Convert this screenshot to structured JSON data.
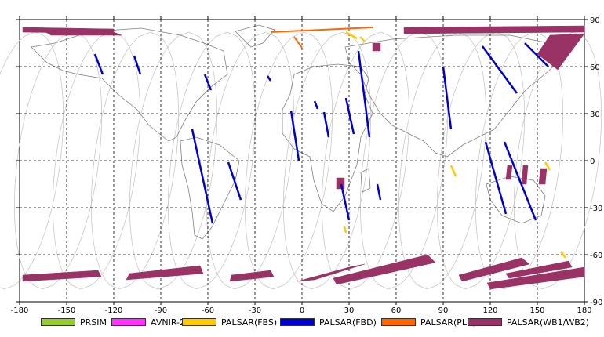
{
  "chart_data": {
    "type": "map",
    "xlim": [
      -180,
      180
    ],
    "ylim": [
      -90,
      90
    ],
    "x_ticks": [
      "-180",
      "-150",
      "-120",
      "-90",
      "-60",
      "-30",
      "0",
      "30",
      "60",
      "90",
      "120",
      "150",
      "180"
    ],
    "y_ticks": [
      "90",
      "60",
      "30",
      "0",
      "-30",
      "-60",
      "-90"
    ],
    "grid": "dashed",
    "legend_placement": "bottom",
    "legend": [
      {
        "label": "PRSIM",
        "color": "#99cc33"
      },
      {
        "label": "AVNIR-2",
        "color": "#ff33ff"
      },
      {
        "label": "PALSAR(FBS)",
        "color": "#ffcc00"
      },
      {
        "label": "PALSAR(FBD)",
        "color": "#0000cc"
      },
      {
        "label": "PALSAR(PLR)",
        "color": "#ff6600"
      },
      {
        "label": "PALSAR(WB1/WB2)",
        "color": "#993366"
      }
    ],
    "colors": {
      "FBD": "#0000cc",
      "FBS": "#ffcc00",
      "PLR": "#ff6600",
      "WB": "#993366",
      "orbit": "#c8c8c8",
      "coast": "#808080"
    },
    "fbd_strips": [
      [
        [
          -132,
          68
        ],
        [
          -127,
          55
        ]
      ],
      [
        [
          -107,
          67
        ],
        [
          -103,
          55
        ]
      ],
      [
        [
          -70,
          20
        ],
        [
          -57,
          -40
        ]
      ],
      [
        [
          -47,
          -1
        ],
        [
          -39,
          -25
        ]
      ],
      [
        [
          -62,
          55
        ],
        [
          -58,
          45
        ]
      ],
      [
        [
          -22,
          54
        ],
        [
          -20,
          51
        ]
      ],
      [
        [
          -7,
          32
        ],
        [
          -2,
          0
        ]
      ],
      [
        [
          8,
          38
        ],
        [
          10,
          33
        ]
      ],
      [
        [
          14,
          31
        ],
        [
          17,
          15
        ]
      ],
      [
        [
          28,
          40
        ],
        [
          33,
          17
        ]
      ],
      [
        [
          36,
          70
        ],
        [
          43,
          15
        ]
      ],
      [
        [
          25,
          -15
        ],
        [
          30,
          -38
        ]
      ],
      [
        [
          48,
          -15
        ],
        [
          50,
          -25
        ]
      ],
      [
        [
          90,
          60
        ],
        [
          95,
          20
        ]
      ],
      [
        [
          117,
          12
        ],
        [
          130,
          -34
        ]
      ],
      [
        [
          129,
          12
        ],
        [
          149,
          -38
        ]
      ],
      [
        [
          115,
          73
        ],
        [
          137,
          43
        ]
      ],
      [
        [
          142,
          75
        ],
        [
          157,
          60
        ]
      ]
    ],
    "fbs_strips": [
      [
        [
          28,
          82
        ],
        [
          35,
          78
        ]
      ],
      [
        [
          37,
          79
        ],
        [
          40,
          76
        ]
      ],
      [
        [
          27,
          -42
        ],
        [
          28,
          -46
        ]
      ],
      [
        [
          165,
          -58
        ],
        [
          168,
          -62
        ]
      ],
      [
        [
          95,
          -3
        ],
        [
          98,
          -10
        ]
      ],
      [
        [
          155,
          -1
        ],
        [
          158,
          -6
        ]
      ]
    ],
    "plr_strips": [
      [
        [
          -20,
          82
        ],
        [
          45,
          85
        ]
      ],
      [
        [
          -5,
          79
        ],
        [
          0,
          72
        ]
      ]
    ],
    "wb_swaths": [
      [
        [
          -178,
          85
        ],
        [
          -120,
          84
        ],
        [
          -120,
          81
        ],
        [
          -178,
          82
        ]
      ],
      [
        [
          -165,
          83
        ],
        [
          -120,
          82
        ],
        [
          -115,
          80
        ],
        [
          -160,
          80
        ]
      ],
      [
        [
          -178,
          -73
        ],
        [
          -130,
          -70
        ],
        [
          -128,
          -74
        ],
        [
          -178,
          -77
        ]
      ],
      [
        [
          -110,
          -72
        ],
        [
          -65,
          -67
        ],
        [
          -63,
          -72
        ],
        [
          -112,
          -76
        ]
      ],
      [
        [
          -45,
          -73
        ],
        [
          -20,
          -70
        ],
        [
          -18,
          -74
        ],
        [
          -46,
          -77
        ]
      ],
      [
        [
          -3,
          -77
        ],
        [
          30,
          -68
        ],
        [
          40,
          -66
        ],
        [
          8,
          -76
        ]
      ],
      [
        [
          20,
          -75
        ],
        [
          80,
          -60
        ],
        [
          85,
          -65
        ],
        [
          22,
          -79
        ]
      ],
      [
        [
          100,
          -73
        ],
        [
          140,
          -62
        ],
        [
          145,
          -66
        ],
        [
          102,
          -77
        ]
      ],
      [
        [
          118,
          -78
        ],
        [
          180,
          -68
        ],
        [
          180,
          -74
        ],
        [
          120,
          -82
        ]
      ],
      [
        [
          130,
          -72
        ],
        [
          170,
          -64
        ],
        [
          172,
          -68
        ],
        [
          132,
          -75
        ]
      ],
      [
        [
          65,
          85
        ],
        [
          180,
          86
        ],
        [
          180,
          82
        ],
        [
          65,
          81
        ]
      ],
      [
        [
          158,
          80
        ],
        [
          180,
          81
        ],
        [
          163,
          58
        ],
        [
          150,
          68
        ]
      ],
      [
        [
          45,
          75
        ],
        [
          50,
          75
        ],
        [
          50,
          70
        ],
        [
          45,
          70
        ]
      ],
      [
        [
          131,
          -3
        ],
        [
          134,
          -3
        ],
        [
          133,
          -12
        ],
        [
          130,
          -12
        ]
      ],
      [
        [
          141,
          -3
        ],
        [
          144,
          -3
        ],
        [
          143,
          -15
        ],
        [
          140,
          -15
        ]
      ],
      [
        [
          152,
          -5
        ],
        [
          156,
          -5
        ],
        [
          155,
          -15
        ],
        [
          151,
          -15
        ]
      ],
      [
        [
          22,
          -11
        ],
        [
          27,
          -11
        ],
        [
          27,
          -18
        ],
        [
          22,
          -18
        ]
      ]
    ]
  }
}
